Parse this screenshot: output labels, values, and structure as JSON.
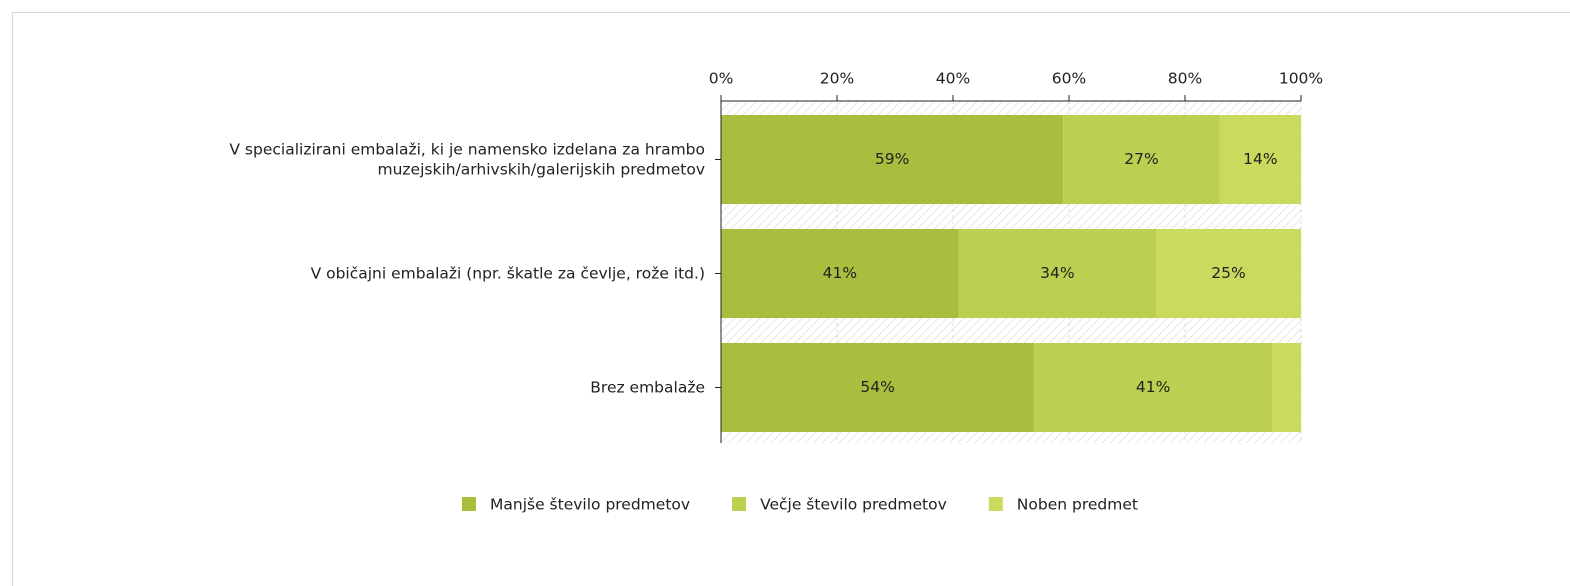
{
  "chart_data": {
    "type": "stacked-bar-horizontal",
    "categories": [
      "V specializirani embalaži, ki je namensko izdelana za hrambo muzejskih/arhivskih/galerijskih predmetov",
      "V običajni embalaži (npr. škatle za čevlje, rože itd.)",
      "Brez embalaže"
    ],
    "series": [
      {
        "name": "Manjše število predmetov",
        "color": "#a9bd3f",
        "values": [
          59,
          41,
          54
        ],
        "value_labels": [
          "59%",
          "41%",
          "54%"
        ]
      },
      {
        "name": "Večje število predmetov",
        "color": "#bccf50",
        "values": [
          27,
          34,
          41
        ],
        "value_labels": [
          "27%",
          "34%",
          "41%"
        ]
      },
      {
        "name": "Noben predmet",
        "color": "#cada5e",
        "values": [
          14,
          25,
          5
        ],
        "value_labels": [
          "14%",
          "25%",
          null
        ]
      }
    ],
    "xlim": [
      0,
      100
    ],
    "xticks": [
      {
        "value": 0,
        "label": "0%"
      },
      {
        "value": 20,
        "label": "20%"
      },
      {
        "value": 40,
        "label": "40%"
      },
      {
        "value": 60,
        "label": "60%"
      },
      {
        "value": 80,
        "label": "80%"
      },
      {
        "value": 100,
        "label": "100%"
      }
    ],
    "grid": true,
    "legend": "bottom"
  }
}
